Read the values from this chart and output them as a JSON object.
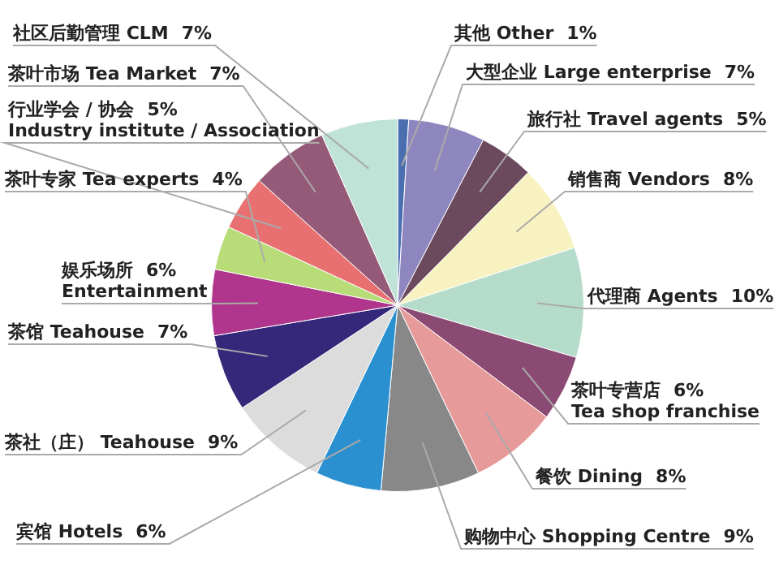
{
  "chart_data": {
    "type": "pie",
    "categories": [
      "其他 Other",
      "大型企业 Large enterprise",
      "旅行社 Travel agents",
      "销售商 Vendors",
      "代理商 Agents",
      "茶叶专营店\nTea shop franchise",
      "餐饮 Dining",
      "购物中心 Shopping Centre",
      "宾馆 Hotels",
      "茶社（庄） Teahouse",
      "茶馆 Teahouse",
      "娱乐场所\nEntertainment",
      "茶叶专家 Tea experts",
      "行业学会 / 协会\nIndustry institute / Association",
      "茶叶市场 Tea Market",
      "社区后勤管理 CLM"
    ],
    "values": [
      1,
      7,
      5,
      8,
      10,
      6,
      8,
      9,
      6,
      9,
      7,
      6,
      4,
      5,
      7,
      7
    ],
    "value_labels": [
      "1%",
      "7%",
      "5%",
      "8%",
      "10%",
      "6%",
      "8%",
      "9%",
      "6%",
      "9%",
      "7%",
      "6%",
      "4%",
      "5%",
      "7%",
      "7%"
    ],
    "colors": [
      "#4a6fb0",
      "#8e86bf",
      "#6b4a5e",
      "#f7f2bf",
      "#b5dccb",
      "#8a4a74",
      "#e79a9a",
      "#888888",
      "#2a90d0",
      "#dcdcdc",
      "#35277a",
      "#b0358c",
      "#b8dc78",
      "#e87070",
      "#955a78",
      "#bfe3d6"
    ],
    "legend": false
  }
}
